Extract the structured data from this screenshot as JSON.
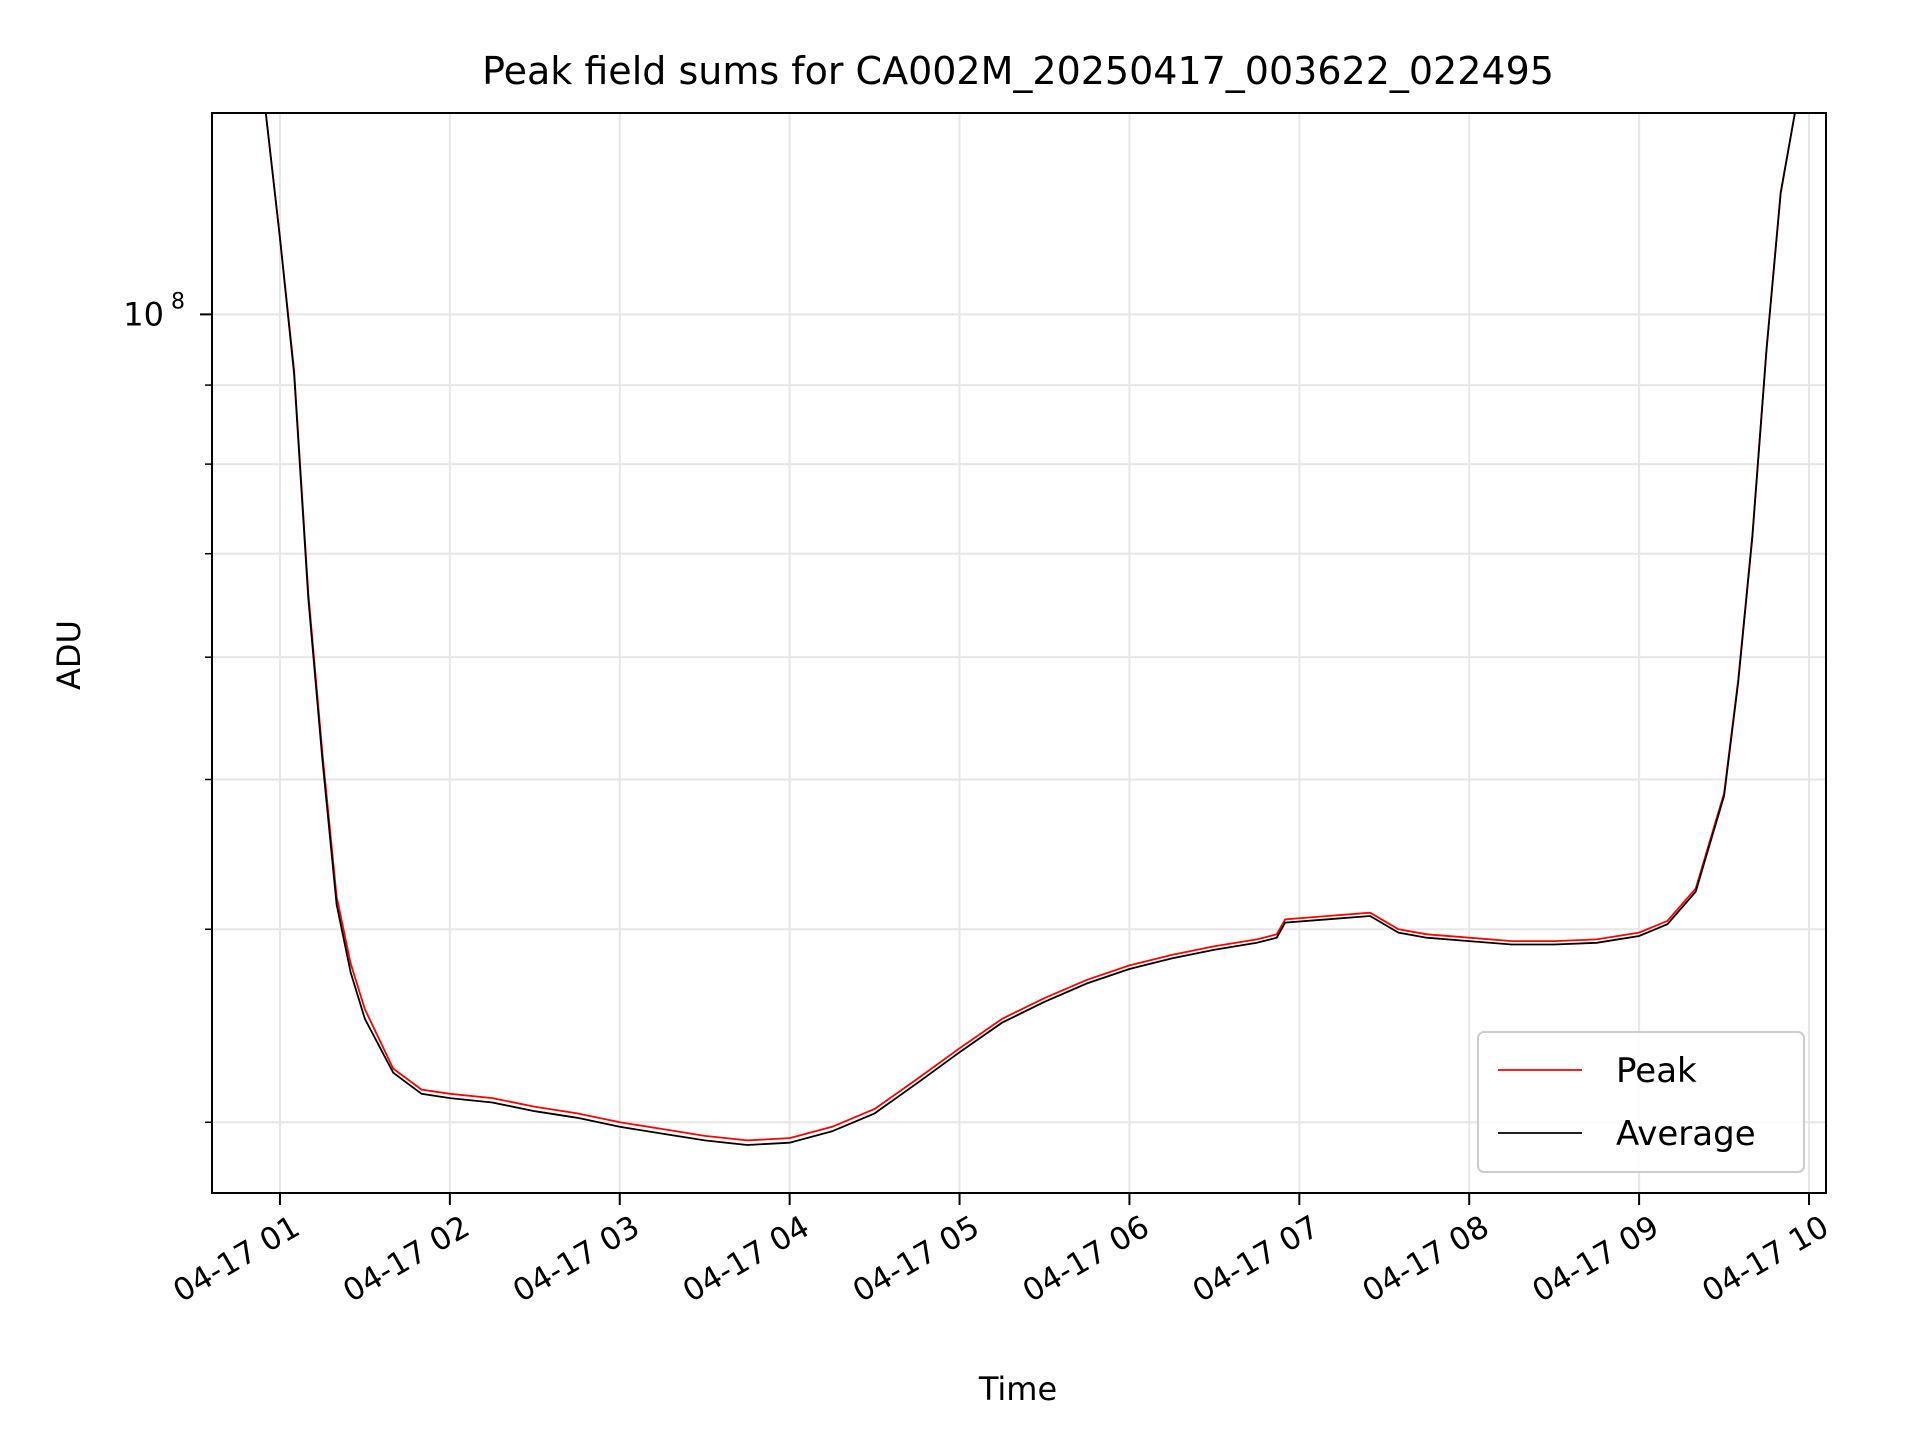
{
  "chart_data": {
    "type": "line",
    "title": "Peak field sums for CA002M_20250417_003622_022495",
    "xlabel": "Time",
    "ylabel": "ADU",
    "yscale": "log",
    "ylim": [
      27000000,
      135000000
    ],
    "xlim": [
      "04-17 00:36",
      "04-17 10:06"
    ],
    "grid": true,
    "legend_position": "lower-right",
    "x_ticks": [
      "04-17 01",
      "04-17 02",
      "04-17 03",
      "04-17 04",
      "04-17 05",
      "04-17 06",
      "04-17 07",
      "04-17 08",
      "04-17 09",
      "04-17 10"
    ],
    "y_tick_labels": [
      {
        "base": "10",
        "exp": "8",
        "value": 100000000
      }
    ],
    "y_minor_ticks": [
      30000000,
      40000000,
      50000000,
      60000000,
      70000000,
      80000000,
      90000000,
      200000000
    ],
    "series": [
      {
        "name": "Peak",
        "color": "#ff0000",
        "points": [
          [
            "04-17 00:55",
            135000000
          ],
          [
            "04-17 01:00",
            112000000
          ],
          [
            "04-17 01:05",
            92000000
          ],
          [
            "04-17 01:10",
            66000000
          ],
          [
            "04-17 01:15",
            52000000
          ],
          [
            "04-17 01:20",
            42000000
          ],
          [
            "04-17 01:25",
            38000000
          ],
          [
            "04-17 01:30",
            35500000
          ],
          [
            "04-17 01:40",
            32500000
          ],
          [
            "04-17 01:50",
            31500000
          ],
          [
            "04-17 02:00",
            31300000
          ],
          [
            "04-17 02:15",
            31100000
          ],
          [
            "04-17 02:30",
            30700000
          ],
          [
            "04-17 02:45",
            30400000
          ],
          [
            "04-17 03:00",
            30000000
          ],
          [
            "04-17 03:15",
            29700000
          ],
          [
            "04-17 03:30",
            29400000
          ],
          [
            "04-17 03:45",
            29200000
          ],
          [
            "04-17 04:00",
            29300000
          ],
          [
            "04-17 04:15",
            29800000
          ],
          [
            "04-17 04:30",
            30600000
          ],
          [
            "04-17 04:45",
            32000000
          ],
          [
            "04-17 05:00",
            33500000
          ],
          [
            "04-17 05:15",
            35000000
          ],
          [
            "04-17 05:30",
            36100000
          ],
          [
            "04-17 05:45",
            37100000
          ],
          [
            "04-17 06:00",
            37900000
          ],
          [
            "04-17 06:15",
            38500000
          ],
          [
            "04-17 06:30",
            39000000
          ],
          [
            "04-17 06:45",
            39400000
          ],
          [
            "04-17 06:52",
            39700000
          ],
          [
            "04-17 06:55",
            40600000
          ],
          [
            "04-17 07:10",
            40800000
          ],
          [
            "04-17 07:25",
            41000000
          ],
          [
            "04-17 07:35",
            40000000
          ],
          [
            "04-17 07:45",
            39700000
          ],
          [
            "04-17 08:00",
            39500000
          ],
          [
            "04-17 08:15",
            39300000
          ],
          [
            "04-17 08:30",
            39300000
          ],
          [
            "04-17 08:45",
            39400000
          ],
          [
            "04-17 09:00",
            39800000
          ],
          [
            "04-17 09:10",
            40500000
          ],
          [
            "04-17 09:20",
            42500000
          ],
          [
            "04-17 09:30",
            49000000
          ],
          [
            "04-17 09:35",
            58000000
          ],
          [
            "04-17 09:40",
            72000000
          ],
          [
            "04-17 09:45",
            95000000
          ],
          [
            "04-17 09:50",
            120000000
          ],
          [
            "04-17 09:55",
            135000000
          ]
        ]
      },
      {
        "name": "Average",
        "color": "#000000",
        "points": [
          [
            "04-17 00:55",
            135000000
          ],
          [
            "04-17 01:00",
            112000000
          ],
          [
            "04-17 01:05",
            91500000
          ],
          [
            "04-17 01:10",
            65500000
          ],
          [
            "04-17 01:15",
            51500000
          ],
          [
            "04-17 01:20",
            41500000
          ],
          [
            "04-17 01:25",
            37500000
          ],
          [
            "04-17 01:30",
            35000000
          ],
          [
            "04-17 01:40",
            32300000
          ],
          [
            "04-17 01:50",
            31300000
          ],
          [
            "04-17 02:00",
            31100000
          ],
          [
            "04-17 02:15",
            30900000
          ],
          [
            "04-17 02:30",
            30500000
          ],
          [
            "04-17 02:45",
            30200000
          ],
          [
            "04-17 03:00",
            29800000
          ],
          [
            "04-17 03:15",
            29500000
          ],
          [
            "04-17 03:30",
            29200000
          ],
          [
            "04-17 03:45",
            29000000
          ],
          [
            "04-17 04:00",
            29100000
          ],
          [
            "04-17 04:15",
            29600000
          ],
          [
            "04-17 04:30",
            30400000
          ],
          [
            "04-17 04:45",
            31800000
          ],
          [
            "04-17 05:00",
            33300000
          ],
          [
            "04-17 05:15",
            34800000
          ],
          [
            "04-17 05:30",
            35900000
          ],
          [
            "04-17 05:45",
            36900000
          ],
          [
            "04-17 06:00",
            37700000
          ],
          [
            "04-17 06:15",
            38300000
          ],
          [
            "04-17 06:30",
            38800000
          ],
          [
            "04-17 06:45",
            39200000
          ],
          [
            "04-17 06:52",
            39500000
          ],
          [
            "04-17 06:55",
            40400000
          ],
          [
            "04-17 07:10",
            40600000
          ],
          [
            "04-17 07:25",
            40800000
          ],
          [
            "04-17 07:35",
            39800000
          ],
          [
            "04-17 07:45",
            39500000
          ],
          [
            "04-17 08:00",
            39300000
          ],
          [
            "04-17 08:15",
            39100000
          ],
          [
            "04-17 08:30",
            39100000
          ],
          [
            "04-17 08:45",
            39200000
          ],
          [
            "04-17 09:00",
            39600000
          ],
          [
            "04-17 09:10",
            40300000
          ],
          [
            "04-17 09:20",
            42300000
          ],
          [
            "04-17 09:30",
            48800000
          ],
          [
            "04-17 09:35",
            57800000
          ],
          [
            "04-17 09:40",
            71800000
          ],
          [
            "04-17 09:45",
            94800000
          ],
          [
            "04-17 09:50",
            119800000
          ],
          [
            "04-17 09:55",
            135000000
          ]
        ]
      }
    ]
  }
}
